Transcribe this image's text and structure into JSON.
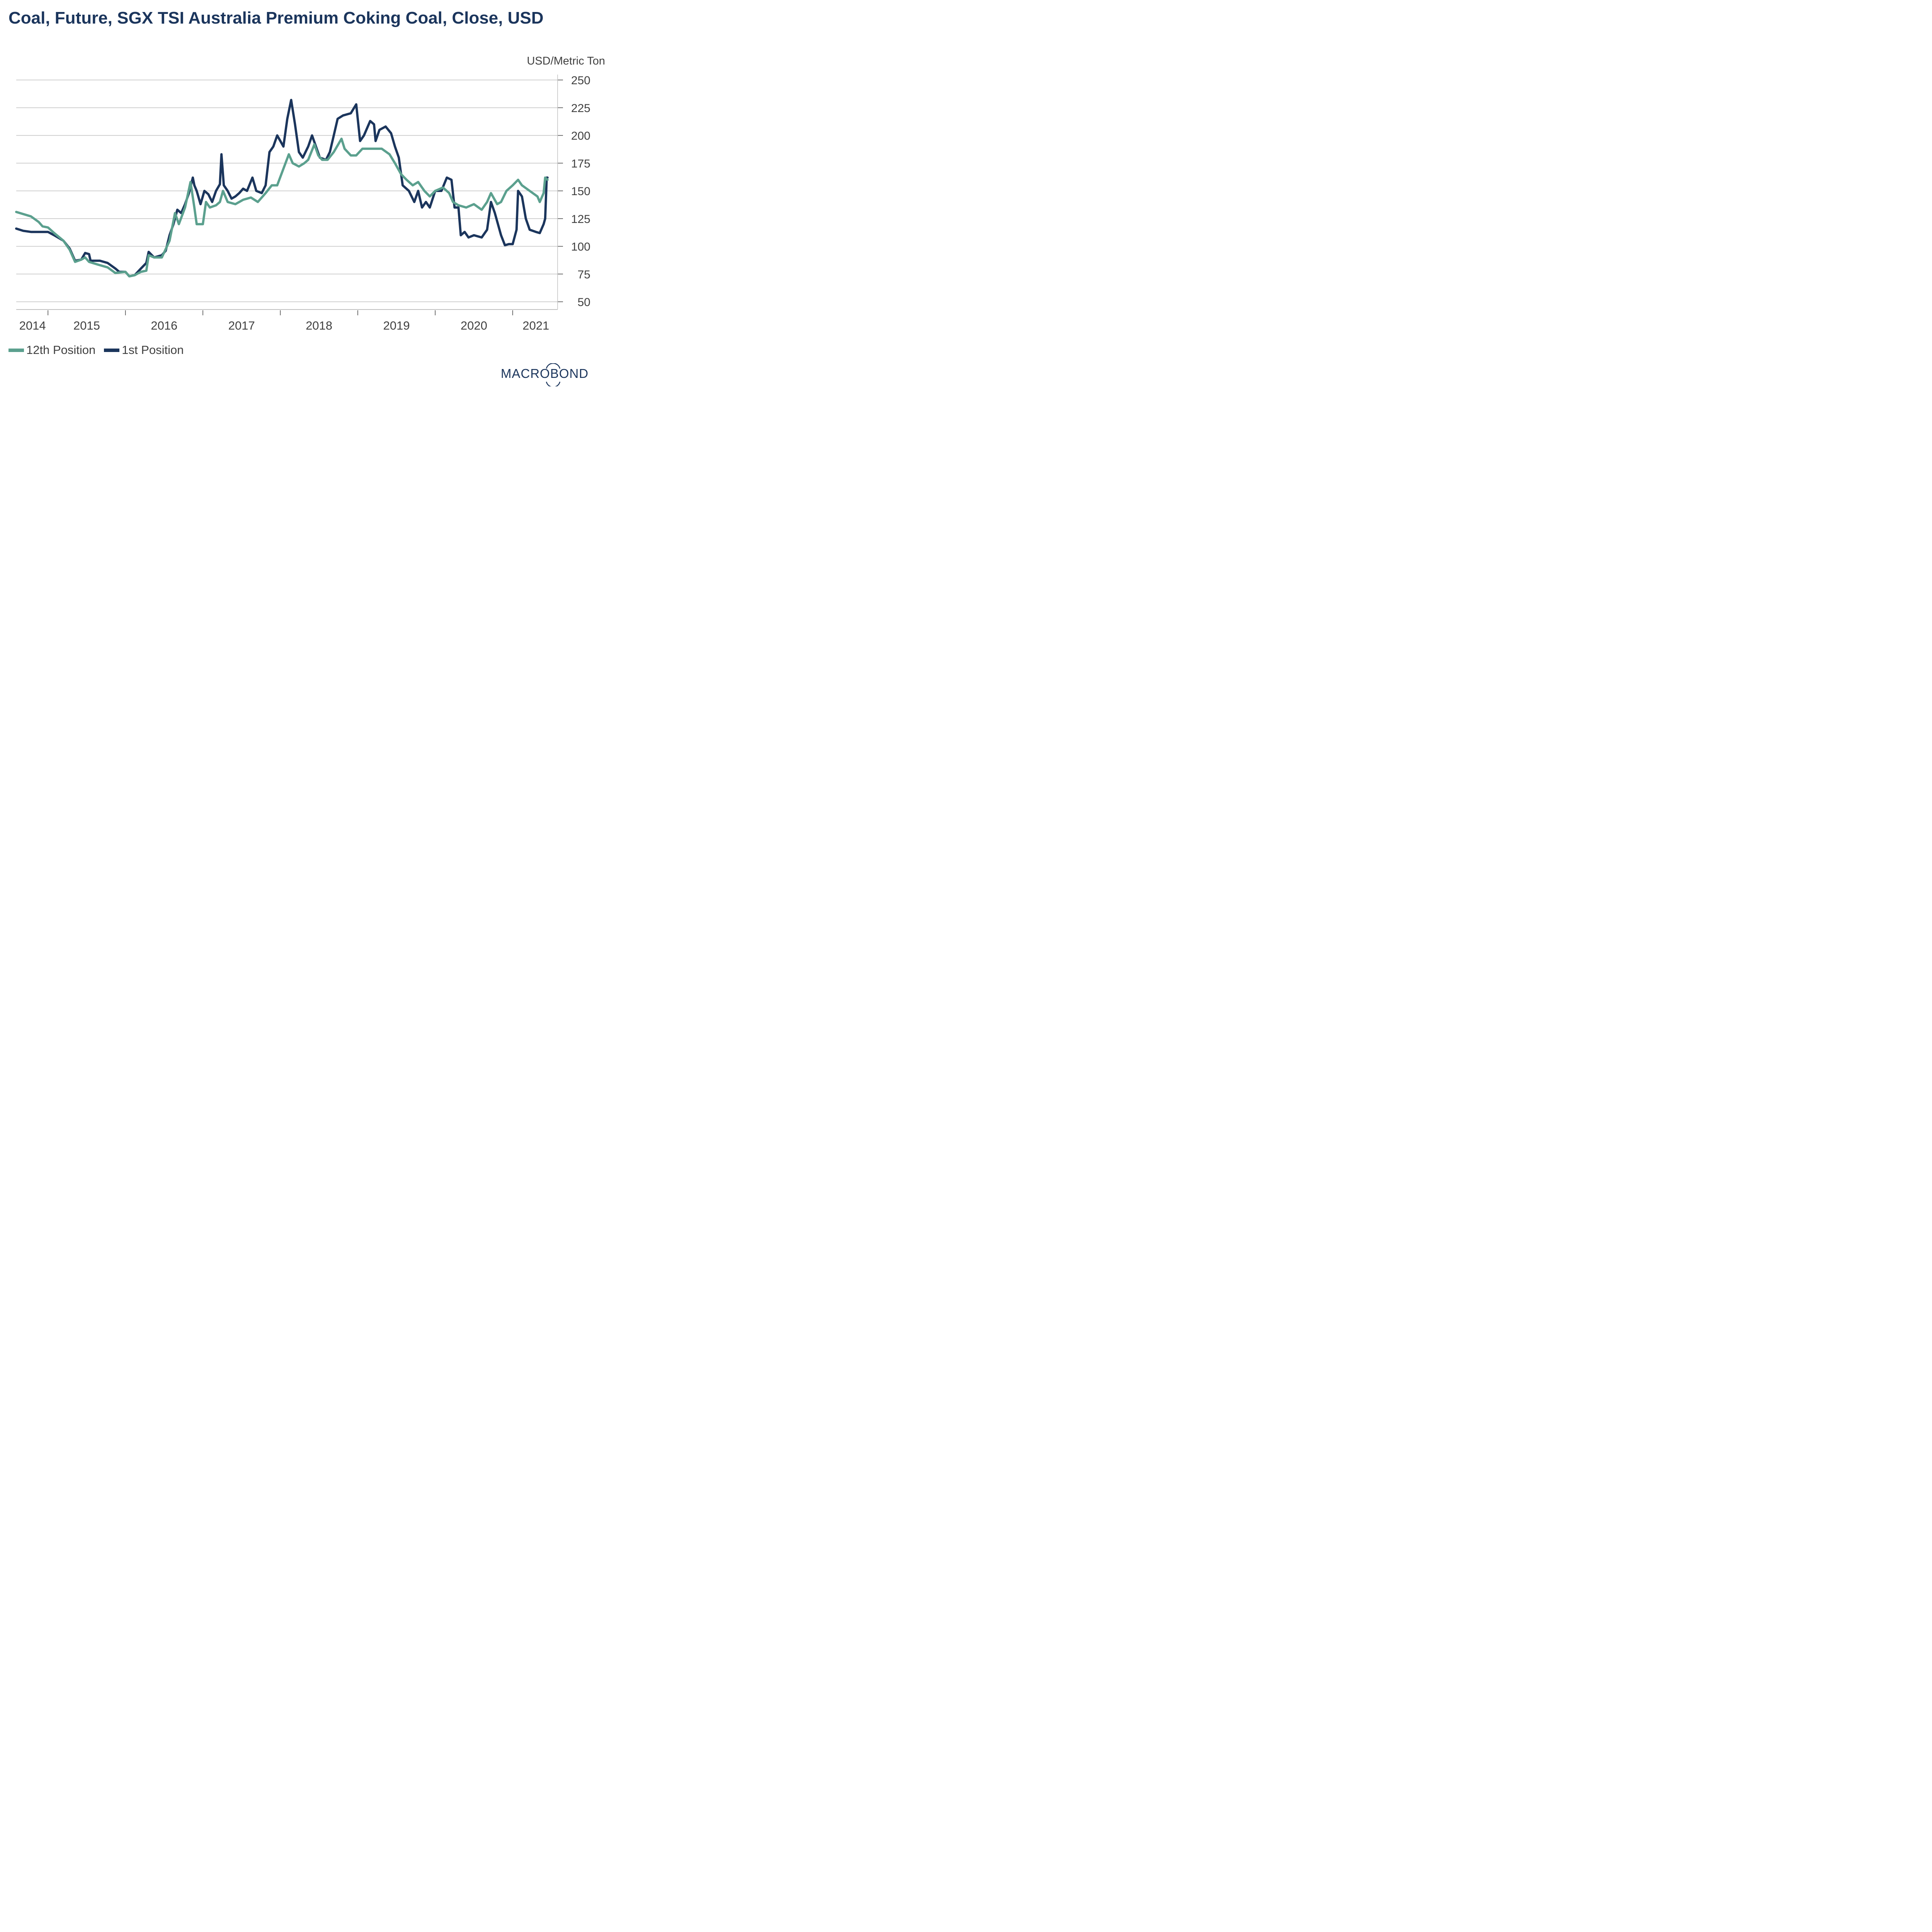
{
  "title": "Coal, Future, SGX TSI Australia Premium Coking Coal, Close, USD",
  "logo_text": "MACROBOND",
  "chart_data": {
    "type": "line",
    "title": "Coal, Future, SGX TSI Australia Premium Coking Coal, Close, USD",
    "xlabel": "",
    "ylabel": "USD/Metric Ton",
    "ylim": [
      42,
      257
    ],
    "xlim": [
      2014.59,
      2021.58
    ],
    "yticks": [
      50,
      75,
      100,
      125,
      150,
      175,
      200,
      225,
      250
    ],
    "xticks_boundaries": [
      2015,
      2016,
      2017,
      2018,
      2019,
      2020,
      2021
    ],
    "xtick_labels": [
      {
        "label": "2014",
        "center": 2014.8
      },
      {
        "label": "2015",
        "center": 2015.5
      },
      {
        "label": "2016",
        "center": 2016.5
      },
      {
        "label": "2017",
        "center": 2017.5
      },
      {
        "label": "2018",
        "center": 2018.5
      },
      {
        "label": "2019",
        "center": 2019.5
      },
      {
        "label": "2020",
        "center": 2020.5
      },
      {
        "label": "2021",
        "center": 2021.3
      }
    ],
    "grid": true,
    "y_axis_side": "right",
    "legend_position": "bottom-left",
    "series": [
      {
        "name": "1st Position",
        "color": "#1b355c",
        "x": [
          2014.59,
          2014.68,
          2014.78,
          2014.88,
          2015.0,
          2015.08,
          2015.2,
          2015.28,
          2015.35,
          2015.43,
          2015.48,
          2015.53,
          2015.55,
          2015.67,
          2015.77,
          2015.87,
          2015.92,
          2016.0,
          2016.05,
          2016.12,
          2016.2,
          2016.27,
          2016.3,
          2016.37,
          2016.47,
          2016.52,
          2016.57,
          2016.62,
          2016.67,
          2016.72,
          2016.77,
          2016.82,
          2016.87,
          2016.89,
          2016.92,
          2016.97,
          2017.02,
          2017.07,
          2017.12,
          2017.17,
          2017.22,
          2017.24,
          2017.27,
          2017.32,
          2017.37,
          2017.42,
          2017.47,
          2017.52,
          2017.57,
          2017.64,
          2017.69,
          2017.76,
          2017.81,
          2017.86,
          2017.91,
          2017.96,
          2018.0,
          2018.04,
          2018.09,
          2018.14,
          2018.19,
          2018.24,
          2018.29,
          2018.36,
          2018.41,
          2018.46,
          2018.51,
          2018.59,
          2018.64,
          2018.69,
          2018.74,
          2018.81,
          2018.91,
          2018.98,
          2019.03,
          2019.08,
          2019.16,
          2019.21,
          2019.23,
          2019.28,
          2019.36,
          2019.43,
          2019.48,
          2019.53,
          2019.58,
          2019.66,
          2019.73,
          2019.78,
          2019.83,
          2019.88,
          2019.93,
          2020.0,
          2020.08,
          2020.15,
          2020.21,
          2020.25,
          2020.3,
          2020.33,
          2020.38,
          2020.43,
          2020.5,
          2020.6,
          2020.67,
          2020.72,
          2020.77,
          2020.85,
          2020.9,
          2020.95,
          2021.0,
          2021.05,
          2021.07,
          2021.12,
          2021.17,
          2021.22,
          2021.3,
          2021.35,
          2021.4,
          2021.42,
          2021.44,
          2021.45
        ],
        "values": [
          116,
          114,
          113,
          113,
          113,
          110,
          105,
          98,
          87,
          88,
          94,
          93,
          87,
          87,
          85,
          80,
          77,
          77,
          73,
          74,
          80,
          85,
          95,
          90,
          92,
          96,
          110,
          120,
          133,
          130,
          138,
          148,
          162,
          155,
          150,
          138,
          150,
          147,
          140,
          150,
          156,
          183,
          155,
          150,
          143,
          145,
          148,
          152,
          150,
          162,
          150,
          148,
          155,
          185,
          190,
          200,
          195,
          190,
          215,
          232,
          210,
          185,
          180,
          190,
          200,
          190,
          180,
          178,
          185,
          200,
          215,
          218,
          220,
          228,
          195,
          200,
          213,
          210,
          195,
          205,
          208,
          202,
          190,
          180,
          155,
          150,
          140,
          150,
          135,
          140,
          135,
          150,
          150,
          162,
          160,
          135,
          135,
          110,
          113,
          108,
          110,
          108,
          115,
          140,
          130,
          110,
          101,
          102,
          102,
          115,
          150,
          145,
          125,
          115,
          113,
          112,
          120,
          125,
          162,
          162
        ]
      },
      {
        "name": "12th Position",
        "color": "#5ba08e",
        "x": [
          2014.59,
          2014.78,
          2014.88,
          2014.93,
          2015.0,
          2015.08,
          2015.2,
          2015.28,
          2015.35,
          2015.43,
          2015.48,
          2015.53,
          2015.67,
          2015.77,
          2015.87,
          2016.0,
          2016.05,
          2016.12,
          2016.2,
          2016.27,
          2016.3,
          2016.37,
          2016.47,
          2016.57,
          2016.64,
          2016.69,
          2016.77,
          2016.84,
          2016.89,
          2016.92,
          2017.0,
          2017.04,
          2017.09,
          2017.17,
          2017.22,
          2017.26,
          2017.32,
          2017.42,
          2017.52,
          2017.62,
          2017.71,
          2017.81,
          2017.89,
          2017.96,
          2018.04,
          2018.11,
          2018.16,
          2018.24,
          2018.31,
          2018.36,
          2018.44,
          2018.49,
          2018.54,
          2018.61,
          2018.69,
          2018.79,
          2018.83,
          2018.91,
          2018.98,
          2019.06,
          2019.13,
          2019.23,
          2019.31,
          2019.41,
          2019.48,
          2019.56,
          2019.63,
          2019.71,
          2019.78,
          2019.86,
          2019.93,
          2020.0,
          2020.1,
          2020.18,
          2020.23,
          2020.3,
          2020.4,
          2020.5,
          2020.6,
          2020.67,
          2020.72,
          2020.8,
          2020.85,
          2020.92,
          2021.0,
          2021.07,
          2021.12,
          2021.22,
          2021.32,
          2021.35,
          2021.4,
          2021.42,
          2021.45
        ],
        "values": [
          131,
          127,
          122,
          118,
          117,
          112,
          105,
          97,
          86,
          88,
          90,
          86,
          83,
          81,
          76,
          77,
          73,
          74,
          77,
          78,
          92,
          90,
          90,
          105,
          130,
          120,
          135,
          158,
          135,
          120,
          120,
          140,
          135,
          137,
          140,
          150,
          140,
          138,
          142,
          144,
          140,
          148,
          155,
          155,
          170,
          183,
          175,
          172,
          175,
          178,
          192,
          182,
          178,
          178,
          185,
          197,
          188,
          182,
          182,
          188,
          188,
          188,
          188,
          183,
          175,
          165,
          160,
          155,
          158,
          150,
          145,
          150,
          153,
          148,
          140,
          137,
          135,
          138,
          133,
          140,
          148,
          138,
          140,
          150,
          155,
          160,
          155,
          150,
          145,
          140,
          148,
          162,
          160
        ]
      }
    ]
  }
}
